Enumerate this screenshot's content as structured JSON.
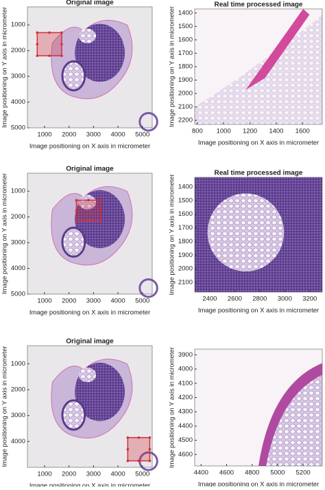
{
  "chart_data": [
    {
      "type": "image",
      "title": "Original image",
      "xlabel": "Image positioning on X axis in micrometer",
      "ylabel": "Image positioning on Y axis in micrometer",
      "xlim": [
        300,
        5400
      ],
      "ylim": [
        300,
        5000
      ],
      "xticks": [
        1000,
        2000,
        3000,
        4000,
        5000
      ],
      "yticks": [
        1000,
        2000,
        3000,
        4000,
        5000
      ],
      "y_reversed": true,
      "roi": {
        "x": [
          700,
          1700
        ],
        "y": [
          1300,
          2200
        ],
        "color": "#d0303a"
      }
    },
    {
      "type": "image",
      "title": "Real time processed image",
      "xlabel": "Image positioning on X axis in micrometer",
      "ylabel": "Image positioning on Y axis in micrometer",
      "xlim": [
        780,
        1750
      ],
      "ylim": [
        1370,
        2230
      ],
      "xticks": [
        800,
        1000,
        1200,
        1400,
        1600
      ],
      "yticks": [
        1400,
        1500,
        1600,
        1700,
        1800,
        1900,
        2000,
        2100,
        2200
      ],
      "y_reversed": true
    },
    {
      "type": "image",
      "title": "Original image",
      "xlabel": "Image positioning on X axis in micrometer",
      "ylabel": "Image positioning on Y axis in micrometer",
      "xlim": [
        300,
        5400
      ],
      "ylim": [
        300,
        5000
      ],
      "xticks": [
        1000,
        2000,
        3000,
        4000,
        5000
      ],
      "yticks": [
        1000,
        2000,
        3000,
        4000,
        5000
      ],
      "y_reversed": true,
      "roi": {
        "x": [
          2300,
          3300
        ],
        "y": [
          1350,
          2150
        ],
        "color": "#d0303a"
      }
    },
    {
      "type": "image",
      "title": "Real time processed image",
      "xlabel": "Image positioning on X axis in micrometer",
      "ylabel": "Image positioning on Y axis in micrometer",
      "xlim": [
        2280,
        3300
      ],
      "ylim": [
        1330,
        2170
      ],
      "xticks": [
        2400,
        2600,
        2800,
        3000,
        3200
      ],
      "yticks": [
        1400,
        1500,
        1600,
        1700,
        1800,
        1900,
        2000,
        2100
      ],
      "y_reversed": true
    },
    {
      "type": "image",
      "title": "Original image",
      "xlabel": "Image positioning on X axis in micrometer",
      "ylabel": "Image positioning on Y axis in micrometer",
      "xlim": [
        300,
        5400
      ],
      "ylim": [
        300,
        5000
      ],
      "xticks": [
        1000,
        2000,
        3000,
        4000,
        5000
      ],
      "yticks": [
        1000,
        2000,
        3000,
        4000
      ],
      "y_reversed": true,
      "roi": {
        "x": [
          4400,
          5300
        ],
        "y": [
          3850,
          4750
        ],
        "color": "#d0303a"
      }
    },
    {
      "type": "image",
      "xlabel": "Image positioning on X axis in micrometer",
      "ylabel": "Image positioning on Y axis in micrometer",
      "xlim": [
        4350,
        5350
      ],
      "ylim": [
        3860,
        4680
      ],
      "xticks": [
        4400,
        4600,
        4800,
        5000,
        5200
      ],
      "yticks": [
        3900,
        4000,
        4100,
        4200,
        4300,
        4400,
        4500,
        4600
      ],
      "y_reversed": true
    }
  ]
}
